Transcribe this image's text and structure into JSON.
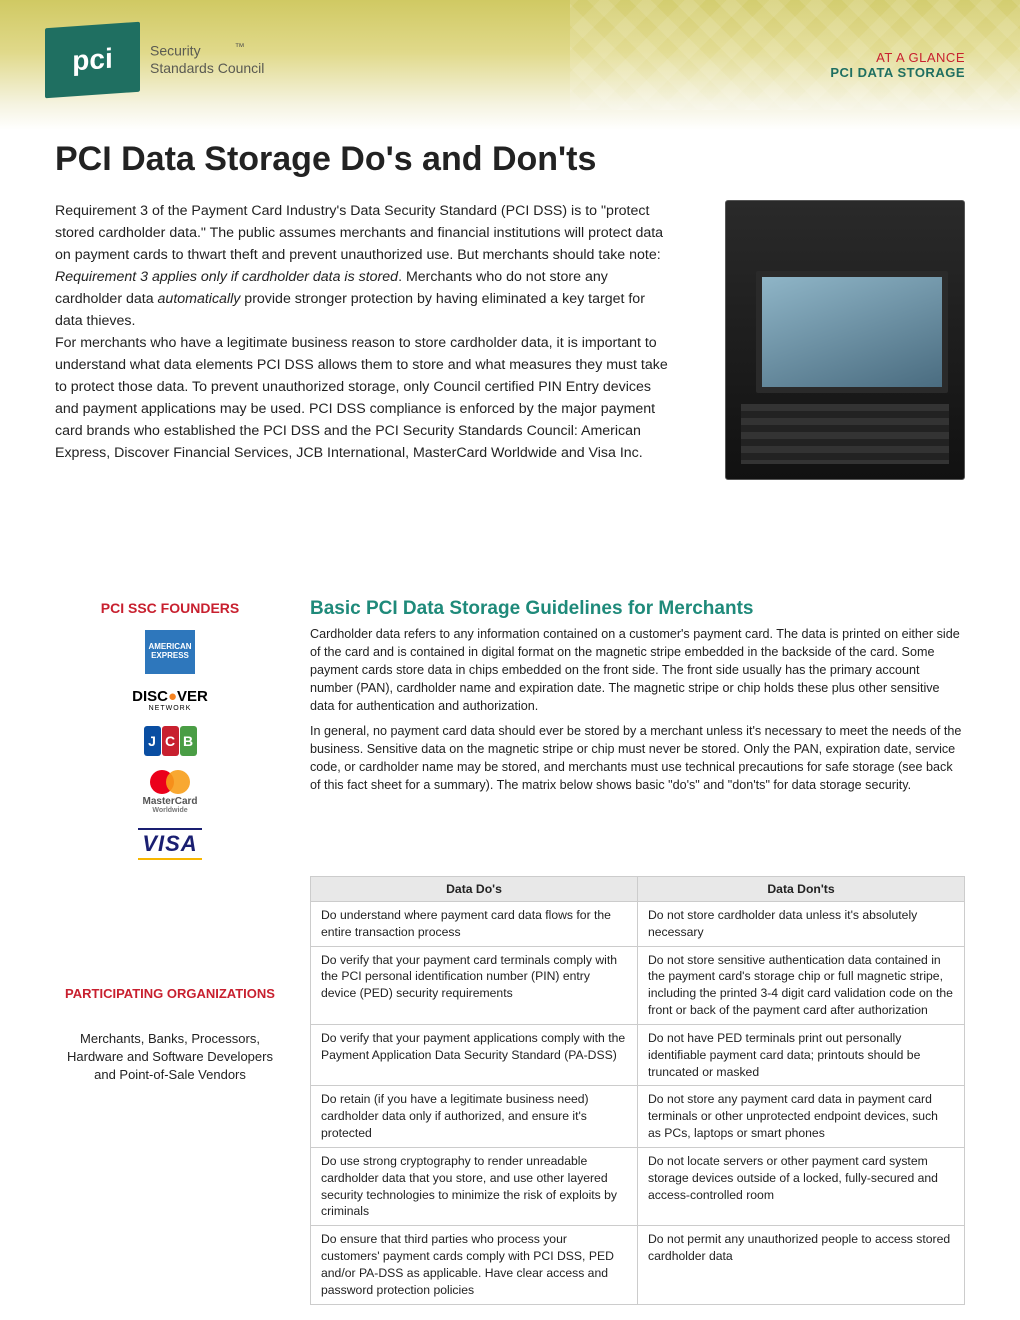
{
  "header": {
    "logo_text": "pci",
    "logo_sub1": "Security",
    "logo_sub2": "Standards Council",
    "right_line1": "AT A GLANCE",
    "right_line2": "PCI DATA STORAGE"
  },
  "title": "PCI Data Storage Do's and Don'ts",
  "intro_html": "Requirement 3 of the Payment Card Industry's Data Security Standard (PCI DSS) is to \"protect stored cardholder data.\" The public assumes merchants and financial institutions will protect data on payment cards to thwart theft and prevent unauthorized use. But merchants should take note: <em>Requirement 3 applies only if cardholder data is stored</em>. Merchants who do not store any cardholder data <em>automatically</em> provide stronger protection by having eliminated a key target for data thieves.<br>For merchants who have a legitimate business reason to store cardholder data, it is important to understand what data elements PCI DSS allows them to store and what measures they must take to protect those data. To prevent unauthorized storage, only Council certified PIN Entry devices and payment applications may be used. PCI DSS compliance is enforced by the major payment card brands who established the PCI DSS and the PCI Security Standards Council: American Express, Discover Financial Services, JCB International, MasterCard Worldwide and Visa Inc.",
  "founders_title": "PCI SSC FOUNDERS",
  "founders": {
    "amex": "AMERICAN EXPRESS",
    "discover": "DISC    VER",
    "discover_sub": "NETWORK",
    "mc_text": "MasterCard",
    "mc_sub": "Worldwide",
    "visa": "VISA"
  },
  "participating_title": "PARTICIPATING ORGANIZATIONS",
  "participating_text": "Merchants, Banks, Processors, Hardware and Software Developers and Point-of-Sale Vendors",
  "section_title": "Basic PCI Data Storage Guidelines for Merchants",
  "section_p1": "Cardholder data refers to any information contained on a customer's payment card. The data is printed on either side of the card and is contained in digital format on the magnetic stripe embedded in the backside of the card. Some payment cards store data in chips embedded on the front side. The front side usually has the primary account number (PAN), cardholder name and expiration date. The magnetic stripe or chip holds these plus other sensitive data for authentication and authorization.",
  "section_p2": "In general, no payment card data should ever be stored by a merchant unless it's necessary to meet the needs of the business. Sensitive data on the magnetic stripe or chip must never be stored. Only the PAN, expiration date, service code, or cardholder name may be stored, and merchants must use technical precautions for safe storage (see back of this fact sheet for a summary). The matrix below shows basic \"do's\" and \"don'ts\" for data storage security.",
  "table": {
    "header_do": "Data Do's",
    "header_dont": "Data Don'ts",
    "rows": [
      [
        "Do understand where payment card data flows for the entire transaction process",
        "Do not store cardholder data unless it's absolutely necessary"
      ],
      [
        "Do verify that your payment card terminals comply with the PCI personal identification number (PIN) entry device (PED) security requirements",
        "Do not store sensitive authentication data contained in the payment card's storage chip or full magnetic stripe, including the printed 3-4 digit card validation code on the front or back of the payment card after authorization"
      ],
      [
        "Do verify that your payment applications comply with the Payment Application Data Security Standard (PA-DSS)",
        "Do not have PED terminals print out personally identifiable payment card data; printouts should be truncated or masked"
      ],
      [
        "Do retain (if you have a legitimate business need) cardholder data only if authorized, and ensure it's protected",
        "Do not store any payment card data in payment card terminals or other unprotected endpoint devices, such as PCs, laptops or smart phones"
      ],
      [
        "Do use strong cryptography to render unreadable cardholder data that you store, and use other layered security technologies to minimize the risk of exploits by criminals",
        "Do not locate servers or other payment card system storage devices outside of a locked, fully-secured and access-controlled room"
      ],
      [
        "Do ensure that third parties who process your customers' payment cards comply with PCI DSS, PED and/or PA-DSS as applicable. Have clear access and password protection policies",
        "Do not permit any unauthorized people to access stored cardholder data"
      ]
    ]
  },
  "colors": {
    "brand_green": "#1f6f61",
    "accent_red": "#c8202f",
    "section_teal": "#1f8a7a",
    "header_gold": "#d0c963"
  }
}
